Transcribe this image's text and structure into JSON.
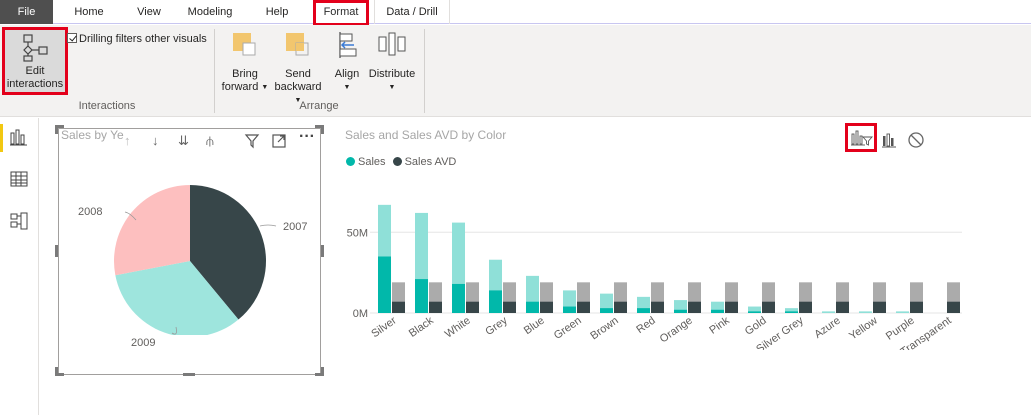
{
  "menu": {
    "file": "File",
    "home": "Home",
    "view": "View",
    "modeling": "Modeling",
    "help": "Help",
    "format": "Format",
    "data_drill": "Data / Drill"
  },
  "ribbon": {
    "edit_interactions_line1": "Edit",
    "edit_interactions_line2": "interactions",
    "drilling_filters": "Drilling filters other visuals",
    "interactions_group": "Interactions",
    "bring_forward_1": "Bring",
    "bring_forward_2": "forward",
    "send_backward_1": "Send",
    "send_backward_2": "backward",
    "align": "Align",
    "distribute": "Distribute",
    "arrange_group": "Arrange"
  },
  "pie": {
    "title": "Sales by Ye",
    "labels": {
      "y2008": "2008",
      "y2007": "2007",
      "y2009": "2009"
    },
    "chart_data": {
      "type": "pie",
      "slices": [
        {
          "label": "2007",
          "value": 39,
          "color": "#374649"
        },
        {
          "label": "2009",
          "value": 33,
          "color": "#9ee5dd"
        },
        {
          "label": "2008",
          "value": 28,
          "color": "#fdbfbf"
        }
      ]
    }
  },
  "bar": {
    "title": "Sales and Sales AVD by Color",
    "legend": {
      "sales": "Sales",
      "sales_avd": "Sales AVD"
    },
    "colors": {
      "sales_dark": "#01b8aa",
      "sales_light": "#8fe0d8",
      "avd_dark": "#374649",
      "avd_light": "#ababab"
    }
  },
  "chart_data": {
    "type": "bar",
    "title": "Sales and Sales AVD by Color",
    "categories": [
      "Silver",
      "Black",
      "White",
      "Grey",
      "Blue",
      "Green",
      "Brown",
      "Red",
      "Orange",
      "Pink",
      "Gold",
      "Silver Grey",
      "Azure",
      "Yellow",
      "Purple",
      "Transparent"
    ],
    "series": [
      {
        "name": "Sales",
        "total": [
          67,
          62,
          56,
          33,
          23,
          14,
          12,
          10,
          8,
          7,
          4,
          3,
          1,
          1,
          1,
          0
        ],
        "highlighted": [
          35,
          21,
          18,
          14,
          7,
          4,
          3,
          3,
          2,
          2,
          1,
          1,
          0,
          0,
          0,
          0
        ]
      },
      {
        "name": "Sales AVD",
        "total": [
          19,
          19,
          19,
          19,
          19,
          19,
          19,
          19,
          19,
          19,
          19,
          19,
          19,
          19,
          19,
          19
        ],
        "highlighted": [
          7,
          7,
          7,
          7,
          7,
          7,
          7,
          7,
          7,
          7,
          7,
          7,
          7,
          7,
          7,
          7
        ]
      }
    ],
    "ylim": [
      0,
      70
    ],
    "yticks": [
      {
        "value": 0,
        "label": "0M"
      },
      {
        "value": 50,
        "label": "50M"
      }
    ]
  }
}
